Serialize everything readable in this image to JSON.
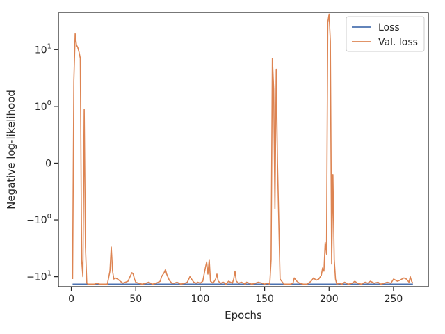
{
  "chart_data": {
    "type": "line",
    "title": "",
    "xlabel": "Epochs",
    "ylabel": "Negative log-likelihood",
    "yscale": "symlog",
    "xlim": [
      -10,
      277
    ],
    "ylim": [
      -15,
      45
    ],
    "grid": false,
    "legend_position": "top-right",
    "x_ticks": [
      0,
      50,
      100,
      150,
      200,
      250
    ],
    "x_tick_labels": [
      "0",
      "50",
      "100",
      "150",
      "200",
      "250"
    ],
    "y_ticks": [
      -10,
      -1,
      0,
      1,
      10
    ],
    "y_tick_labels": [
      {
        "base": "−10",
        "exp": "1"
      },
      {
        "base": "−10",
        "exp": "0"
      },
      {
        "base": "0",
        "exp": ""
      },
      {
        "base": "10",
        "exp": "0"
      },
      {
        "base": "10",
        "exp": "1"
      }
    ],
    "series": [
      {
        "name": "Loss",
        "color": "#4c72b0",
        "x": [
          1,
          20,
          50,
          100,
          150,
          200,
          265
        ],
        "y": [
          -13.5,
          -13.5,
          -13.5,
          -13.5,
          -13.5,
          -13.5,
          -13.5
        ]
      },
      {
        "name": "Val. loss",
        "color": "#dd8452",
        "x": [
          1,
          2,
          3,
          4,
          5,
          6,
          7,
          8,
          9,
          10,
          11,
          12,
          13,
          15,
          18,
          20,
          22,
          25,
          28,
          30,
          31,
          32,
          33,
          34,
          36,
          38,
          40,
          42,
          44,
          46,
          47,
          48,
          49,
          50,
          52,
          55,
          58,
          60,
          63,
          66,
          69,
          70,
          72,
          73,
          74,
          76,
          78,
          80,
          82,
          85,
          88,
          90,
          92,
          95,
          97,
          98,
          100,
          102,
          104,
          105,
          106,
          107,
          108,
          110,
          112,
          113,
          114,
          116,
          118,
          120,
          122,
          125,
          126,
          127,
          128,
          130,
          132,
          135,
          136,
          138,
          140,
          143,
          145,
          148,
          150,
          152,
          154,
          155,
          156,
          157,
          158,
          159,
          160,
          162,
          165,
          168,
          170,
          172,
          173,
          175,
          177,
          180,
          183,
          186,
          188,
          190,
          192,
          194,
          195,
          196,
          197,
          198,
          199,
          200,
          201,
          202,
          203,
          204,
          205,
          206,
          208,
          210,
          212,
          215,
          218,
          220,
          222,
          225,
          228,
          230,
          232,
          235,
          238,
          240,
          243,
          245,
          248,
          250,
          253,
          255,
          258,
          260,
          262,
          263,
          264,
          265
        ],
        "y": [
          -11,
          2.8,
          19,
          12,
          11,
          9,
          7,
          -5,
          -10,
          0.95,
          -3,
          -13,
          -13.5,
          -13.5,
          -13.5,
          -13,
          -13.5,
          -13.5,
          -13.5,
          -8,
          -3,
          -8,
          -11,
          -10.5,
          -11,
          -12,
          -13,
          -12.5,
          -12,
          -9.5,
          -8.5,
          -9,
          -11,
          -12.5,
          -13,
          -13.5,
          -13,
          -12.5,
          -13.5,
          -13,
          -12,
          -10,
          -8.5,
          -7.5,
          -9,
          -11.5,
          -13,
          -13,
          -12.5,
          -13.5,
          -13,
          -12.5,
          -10,
          -12.5,
          -13,
          -12.5,
          -13,
          -12,
          -7,
          -5.5,
          -9,
          -5,
          -12,
          -13,
          -11,
          -9,
          -12,
          -13,
          -12.5,
          -13.5,
          -12,
          -13,
          -11,
          -8,
          -12,
          -13,
          -12.5,
          -13.5,
          -12.5,
          -13,
          -13.5,
          -13,
          -12.5,
          -13,
          -13.5,
          -13,
          -13.5,
          -5,
          7,
          2,
          -0.8,
          4.5,
          0,
          -11,
          -13.5,
          -13.5,
          -13.5,
          -13,
          -10.5,
          -12,
          -13,
          -13.5,
          -13.5,
          -12,
          -10.5,
          -11.5,
          -11,
          -9.5,
          -7,
          -8,
          -2.5,
          -4,
          30,
          42,
          14,
          -6,
          -0.2,
          -5,
          -11,
          -13.5,
          -13,
          -13.5,
          -12.5,
          -13.5,
          -13,
          -12,
          -13,
          -13.5,
          -12.5,
          -13,
          -12,
          -13,
          -12.5,
          -13.5,
          -13,
          -12.5,
          -13,
          -11,
          -12,
          -11.5,
          -10.5,
          -11,
          -12.5,
          -10,
          -12,
          -13
        ]
      }
    ]
  }
}
